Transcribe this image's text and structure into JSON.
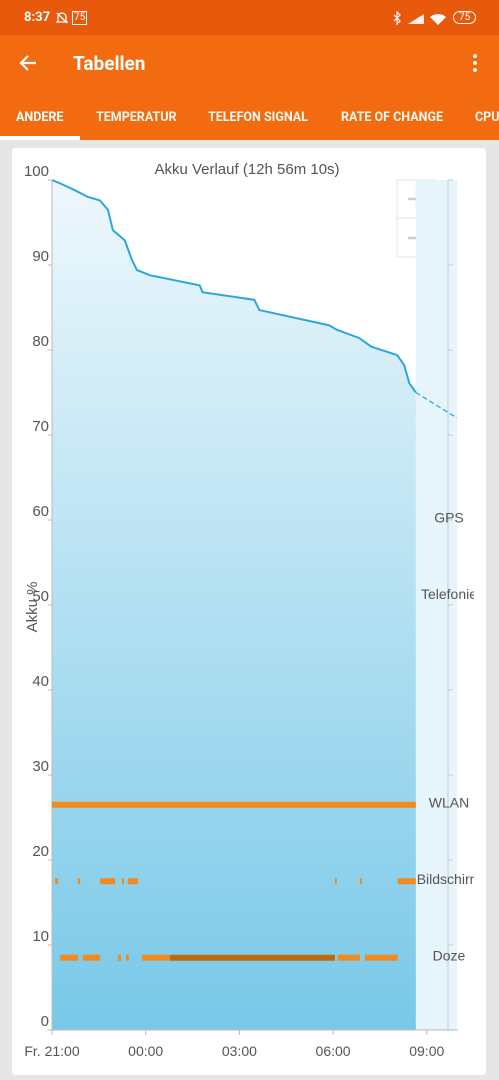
{
  "status_bar": {
    "time": "8:37",
    "notification_badge": "75",
    "battery": "75"
  },
  "app_bar": {
    "title": "Tabellen"
  },
  "tabs": [
    "ANDERE",
    "TEMPERATUR",
    "TELEFON SIGNAL",
    "RATE OF CHANGE",
    "CPU"
  ],
  "chart_data": {
    "type": "line",
    "title": "Akku Verlauf (12h 56m 10s)",
    "y_label": "Akku %",
    "x": [
      0,
      0.26,
      0.73,
      1.15,
      1.53,
      1.79,
      1.95,
      2.33,
      2.56,
      2.72,
      3.13,
      4.73,
      4.82,
      6.48,
      6.64,
      8.88,
      9.11,
      9.84,
      10.22,
      11.05,
      11.28,
      11.44,
      11.65,
      12.97
    ],
    "series": [
      {
        "color": "#2aa8dc",
        "style": "solid",
        "values": [
          100,
          99.6,
          98.8,
          98,
          97.6,
          96.5,
          94.1,
          92.9,
          90.6,
          89.4,
          88.8,
          87.6,
          86.8,
          85.9,
          84.7,
          82.9,
          82.4,
          81.4,
          80.4,
          79.4,
          78.2,
          76.1,
          75,
          null
        ]
      },
      {
        "color": "#2aa8dc",
        "style": "dashed",
        "values": [
          null,
          null,
          null,
          null,
          null,
          null,
          null,
          null,
          null,
          null,
          null,
          null,
          null,
          null,
          null,
          null,
          null,
          null,
          null,
          null,
          null,
          null,
          75,
          72
        ]
      }
    ],
    "xlim": [
      0,
      13
    ],
    "ylim": [
      0,
      100
    ],
    "xticks": [
      {
        "value": 0,
        "label": "Fr. 21:00"
      },
      {
        "value": 3,
        "label": "00:00"
      },
      {
        "value": 6,
        "label": "03:00"
      },
      {
        "value": 9,
        "label": "06:00"
      },
      {
        "value": 12,
        "label": "09:00"
      }
    ],
    "yticks": [
      0,
      10,
      20,
      30,
      40,
      50,
      60,
      70,
      80,
      90,
      100
    ],
    "state_rows": [
      {
        "label": "GPS",
        "y": 60,
        "segments": []
      },
      {
        "label": "Telefonie",
        "y": 51,
        "segments": []
      },
      {
        "label": "WLAN",
        "y": 26.5,
        "color": "#f28a1e",
        "segments": [
          [
            0,
            11.65
          ]
        ]
      },
      {
        "label": "Bildschirm",
        "y": 17.5,
        "color": "#f28a1e",
        "segments": [
          [
            0.1,
            0.19
          ],
          [
            0.83,
            0.9
          ],
          [
            1.54,
            2.02
          ],
          [
            2.24,
            2.3
          ],
          [
            2.43,
            2.75
          ],
          [
            9.06,
            9.12
          ],
          [
            9.86,
            9.92
          ],
          [
            11.07,
            11.65
          ]
        ]
      },
      {
        "label": "Doze",
        "y": 8.5,
        "color": "#f28a1e",
        "dark_color": "#c0680e",
        "segments": [
          [
            0.26,
            0.83
          ],
          [
            0.99,
            1.54
          ],
          [
            2.11,
            2.21
          ],
          [
            2.37,
            2.46
          ],
          [
            2.88,
            3.78
          ],
          [
            9.15,
            9.86
          ],
          [
            10.02,
            11.07
          ]
        ],
        "dark_segments": [
          [
            3.78,
            9.06
          ]
        ]
      }
    ]
  }
}
